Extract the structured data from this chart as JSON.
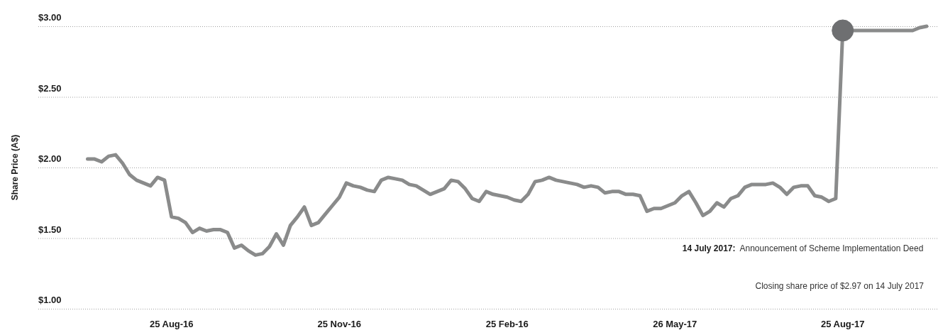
{
  "chart_data": {
    "type": "line",
    "ylabel": "Share Price (A$)",
    "categories": [
      null,
      null,
      null,
      null,
      null,
      null,
      null,
      null,
      null,
      null,
      null,
      null,
      "25 Aug-16",
      null,
      null,
      null,
      null,
      null,
      null,
      null,
      null,
      null,
      null,
      null,
      null,
      null,
      null,
      null,
      null,
      null,
      null,
      null,
      null,
      null,
      null,
      null,
      "25 Nov-16",
      null,
      null,
      null,
      null,
      null,
      null,
      null,
      null,
      null,
      null,
      null,
      null,
      null,
      null,
      null,
      null,
      null,
      null,
      null,
      null,
      null,
      null,
      null,
      "25 Feb-16",
      null,
      null,
      null,
      null,
      null,
      null,
      null,
      null,
      null,
      null,
      null,
      null,
      null,
      null,
      null,
      null,
      null,
      null,
      null,
      null,
      null,
      null,
      null,
      "26 May-17",
      null,
      null,
      null,
      null,
      null,
      null,
      null,
      null,
      null,
      null,
      null,
      null,
      null,
      null,
      null,
      null,
      null,
      null,
      null,
      null,
      null,
      null,
      null,
      "25 Aug-17",
      null,
      null,
      null,
      null,
      null,
      null,
      null,
      null,
      null,
      null,
      null,
      null
    ],
    "series": [
      {
        "type": "line",
        "color": "#8a8b8b",
        "values": [
          2.06,
          2.06,
          2.04,
          2.08,
          2.09,
          2.03,
          1.95,
          1.91,
          1.89,
          1.87,
          1.93,
          1.91,
          1.65,
          1.64,
          1.61,
          1.54,
          1.57,
          1.55,
          1.56,
          1.56,
          1.54,
          1.43,
          1.45,
          1.41,
          1.38,
          1.39,
          1.44,
          1.53,
          1.45,
          1.59,
          1.65,
          1.72,
          1.59,
          1.61,
          1.67,
          1.73,
          1.79,
          1.89,
          1.87,
          1.86,
          1.84,
          1.83,
          1.91,
          1.93,
          1.92,
          1.91,
          1.88,
          1.87,
          1.84,
          1.81,
          1.83,
          1.85,
          1.91,
          1.9,
          1.85,
          1.78,
          1.76,
          1.83,
          1.81,
          1.8,
          1.79,
          1.77,
          1.76,
          1.81,
          1.9,
          1.91,
          1.93,
          1.91,
          1.9,
          1.89,
          1.88,
          1.86,
          1.87,
          1.86,
          1.82,
          1.83,
          1.83,
          1.81,
          1.81,
          1.8,
          1.69,
          1.71,
          1.71,
          1.73,
          1.75,
          1.8,
          1.83,
          1.75,
          1.66,
          1.69,
          1.75,
          1.72,
          1.78,
          1.8,
          1.86,
          1.88,
          1.88,
          1.88,
          1.89,
          1.86,
          1.81,
          1.86,
          1.87,
          1.87,
          1.8,
          1.79,
          1.76,
          1.78,
          2.97,
          2.97,
          2.97,
          2.97,
          2.97,
          2.97,
          2.97,
          2.97,
          2.97,
          2.97,
          2.97,
          2.99,
          3.0
        ]
      },
      {
        "type": "scatter",
        "color": "#6e6f71",
        "x": [
          "25 Aug-17"
        ],
        "values": [
          2.97
        ]
      }
    ],
    "ylim": [
      1,
      3
    ],
    "yticks": [
      {
        "value": 1,
        "label": "$1.00"
      },
      {
        "value": 1.5,
        "label": "$1.50"
      },
      {
        "value": 2,
        "label": "$2.00"
      },
      {
        "value": 2.5,
        "label": "$2.50"
      },
      {
        "value": 3,
        "label": "$3.00"
      }
    ],
    "grid": "y",
    "line_style": "solid",
    "annotations": [
      "14 July 2017: Announcement of Scheme Implementation Deed",
      "Closing share price of $2.97 on 14 July 2017"
    ]
  }
}
